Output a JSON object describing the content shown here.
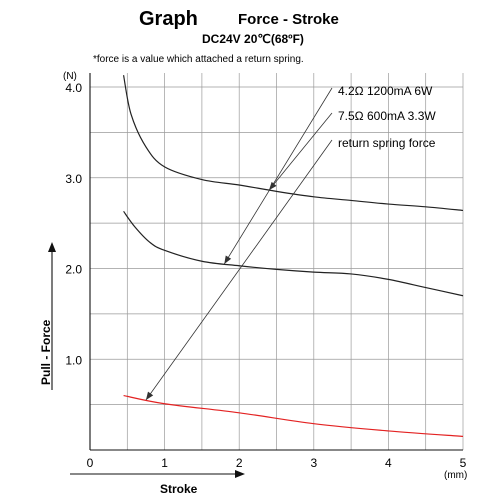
{
  "chart_data": {
    "type": "line",
    "title": "Graph",
    "title_suffix": "Force - Stroke",
    "subtitle": "DC24V  20℃(68ºF)",
    "note": "*force is a value which attached a return spring.",
    "xlabel": "Stroke",
    "ylabel": "Pull - Force",
    "x_unit": "(mm)",
    "y_unit": "(N)",
    "xlim": [
      0,
      5
    ],
    "ylim": [
      0,
      4.0
    ],
    "x_ticks": [
      "0",
      "1",
      "2",
      "3",
      "4",
      "5"
    ],
    "y_ticks": [
      "1.0",
      "2.0",
      "3.0",
      "4.0"
    ],
    "x_grid_step": 0.5,
    "y_grid_step": 0.5,
    "grid": true,
    "series": [
      {
        "name": "4.2Ω 1200mA 6W",
        "color": "#222222",
        "points": [
          [
            0.45,
            4.13
          ],
          [
            0.55,
            3.7
          ],
          [
            0.75,
            3.34
          ],
          [
            1.0,
            3.12
          ],
          [
            1.5,
            2.98
          ],
          [
            2.0,
            2.92
          ],
          [
            2.5,
            2.85
          ],
          [
            3.0,
            2.79
          ],
          [
            3.5,
            2.75
          ],
          [
            4.0,
            2.71
          ],
          [
            4.5,
            2.68
          ],
          [
            5.0,
            2.64
          ]
        ]
      },
      {
        "name": "7.5Ω 600mA 3.3W",
        "color": "#222222",
        "points": [
          [
            0.45,
            2.63
          ],
          [
            0.6,
            2.46
          ],
          [
            0.8,
            2.29
          ],
          [
            1.0,
            2.2
          ],
          [
            1.5,
            2.08
          ],
          [
            2.0,
            2.03
          ],
          [
            2.5,
            1.99
          ],
          [
            3.0,
            1.96
          ],
          [
            3.5,
            1.94
          ],
          [
            4.0,
            1.88
          ],
          [
            4.5,
            1.79
          ],
          [
            5.0,
            1.7
          ]
        ]
      },
      {
        "name": "return spring force",
        "color": "#e32222",
        "points": [
          [
            0.45,
            0.6
          ],
          [
            1.0,
            0.51
          ],
          [
            2.0,
            0.41
          ],
          [
            3.0,
            0.29
          ],
          [
            4.0,
            0.21
          ],
          [
            5.0,
            0.15
          ]
        ]
      }
    ],
    "legend_placement": "top-right"
  }
}
